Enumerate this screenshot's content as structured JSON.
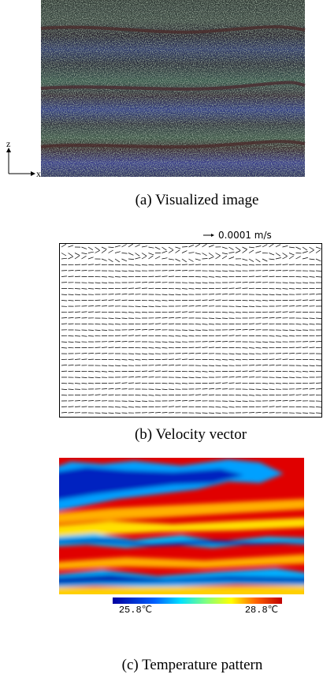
{
  "panels": [
    {
      "caption": "(a) Visualized image",
      "axis_z": "z",
      "axis_x": "x"
    },
    {
      "caption": "(b) Velocity vector",
      "scale_label": "0.0001 m/s"
    },
    {
      "caption": "(c) Temperature pattern",
      "colorbar_min": "25.8℃",
      "colorbar_max": "28.8℃"
    }
  ]
}
